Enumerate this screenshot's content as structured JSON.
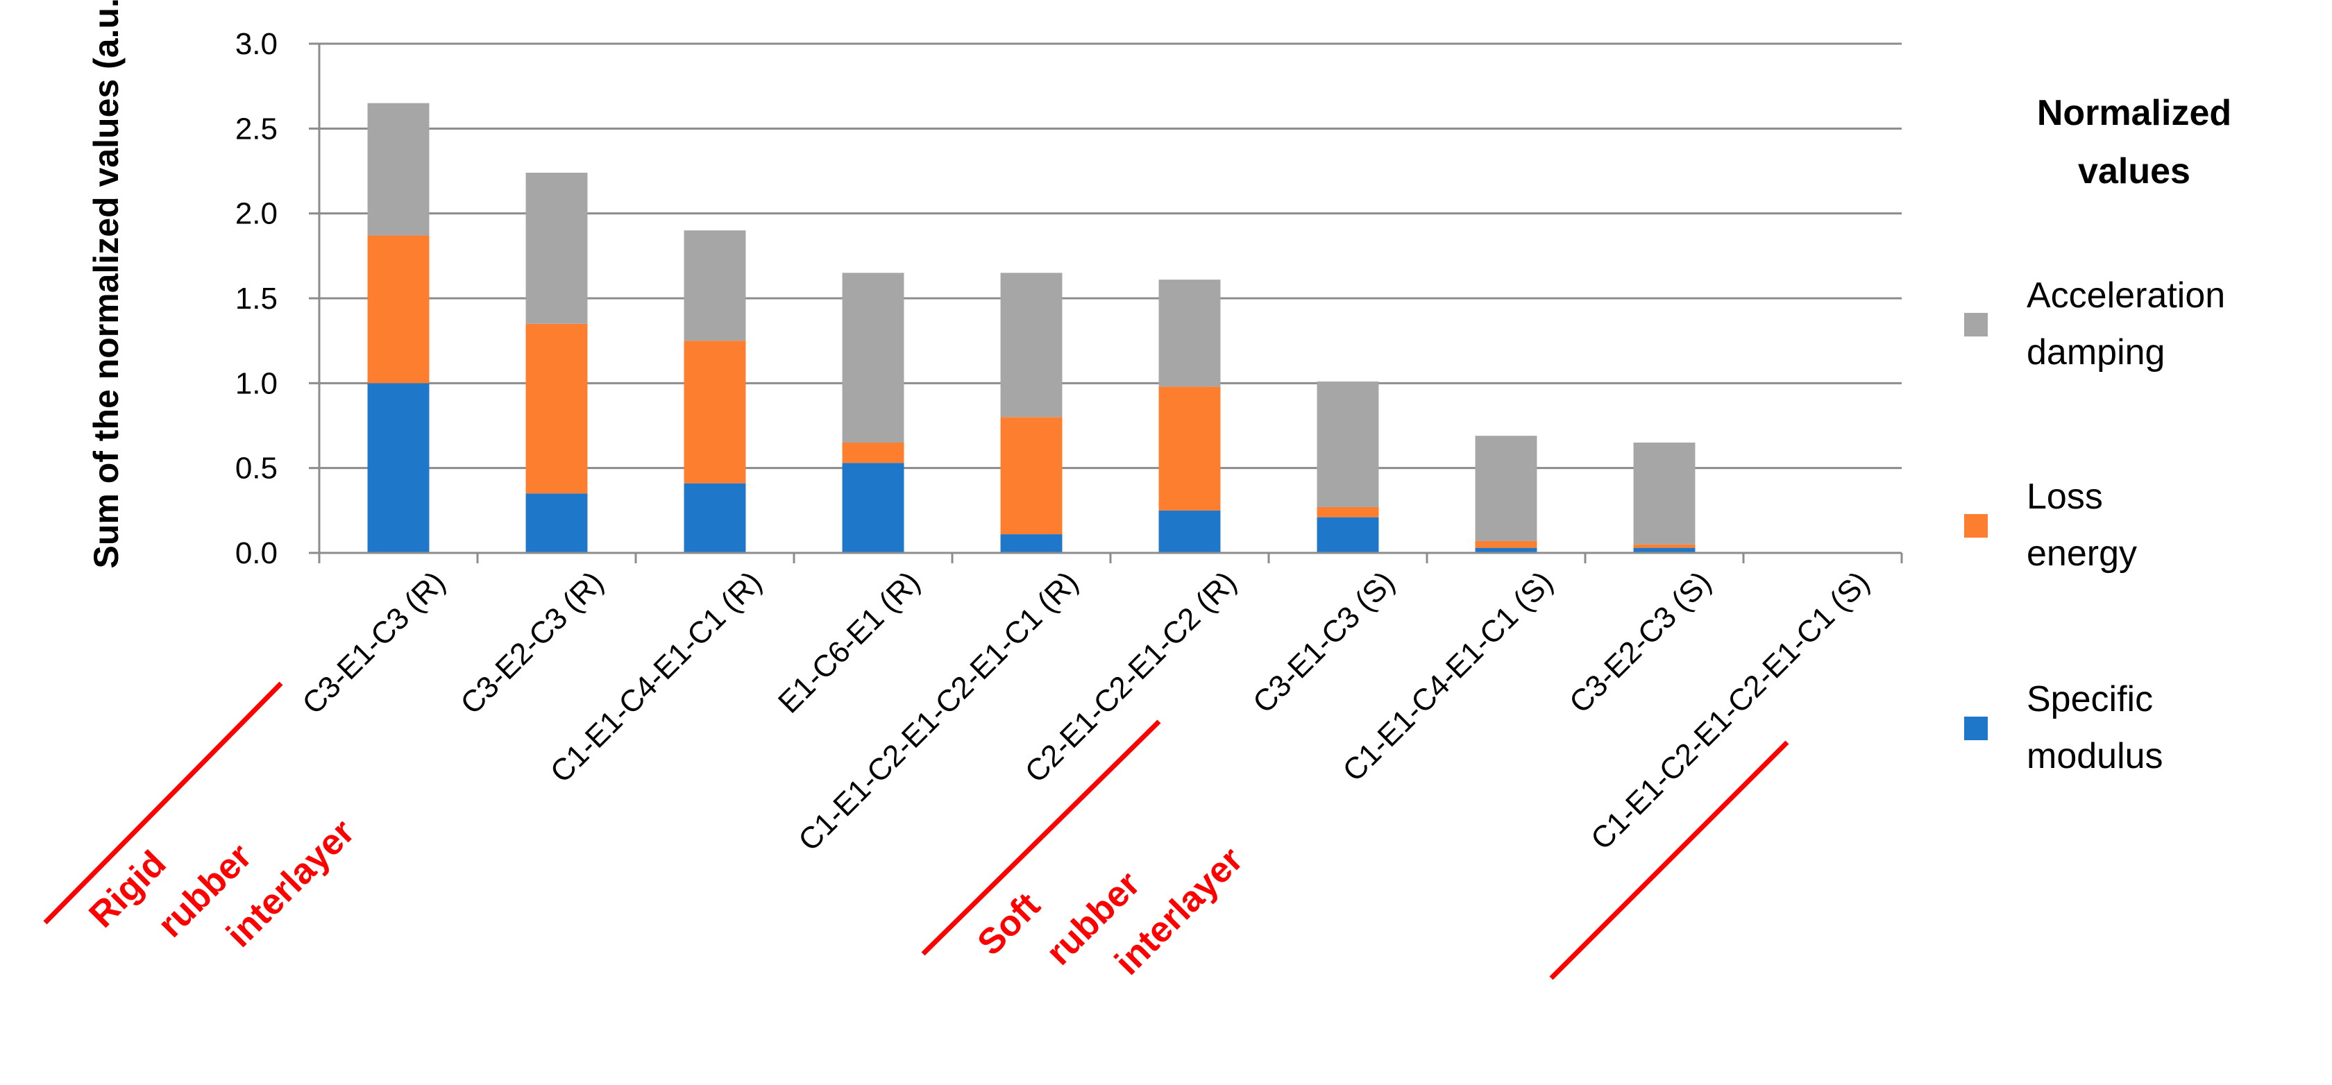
{
  "chart_data": {
    "type": "bar",
    "stacked": true,
    "categories": [
      "C3-E1-C3 (R)",
      "C3-E2-C3 (R)",
      "C1-E1-C4-E1-C1 (R)",
      "E1-C6-E1 (R)",
      "C1-E1-C2-E1-C2-E1-C1 (R)",
      "C2-E1-C2-E1-C2 (R)",
      "C3-E1-C3 (S)",
      "C1-E1-C4-E1-C1 (S)",
      "C3-E2-C3 (S)",
      "C1-E1-C2-E1-C2-E1-C1 (S)"
    ],
    "series": [
      {
        "name": "Specific modulus",
        "color": "#1f77c9",
        "values": [
          1.0,
          0.35,
          0.41,
          0.53,
          0.11,
          0.25,
          0.21,
          0.03,
          0.03,
          0.0
        ]
      },
      {
        "name": "Loss energy",
        "color": "#fd7e2e",
        "values": [
          0.87,
          1.0,
          0.84,
          0.12,
          0.69,
          0.73,
          0.06,
          0.04,
          0.02,
          0.0
        ]
      },
      {
        "name": "Acceleration damping",
        "color": "#a6a6a6",
        "values": [
          0.78,
          0.89,
          0.65,
          1.0,
          0.85,
          0.63,
          0.74,
          0.62,
          0.6,
          0.0
        ]
      }
    ],
    "ylabel": "Sum of the normalized values (a.u.)",
    "ylim": [
      0,
      3.0
    ],
    "yticks": [
      "0.0",
      "0.5",
      "1.0",
      "1.5",
      "2.0",
      "2.5",
      "3.0"
    ],
    "grid": true,
    "legend": {
      "title": "Normalized values",
      "placement": "right",
      "entries": [
        {
          "label": "Acceleration damping",
          "color": "#a6a6a6"
        },
        {
          "label": "Loss energy",
          "color": "#fd7e2e"
        },
        {
          "label": "Specific modulus",
          "color": "#1f77c9"
        }
      ]
    },
    "annotations": [
      {
        "text": "Rigid rubber interlayer",
        "color": "#ff0000"
      },
      {
        "text": "Soft rubber interlayer",
        "color": "#ff0000"
      }
    ]
  }
}
